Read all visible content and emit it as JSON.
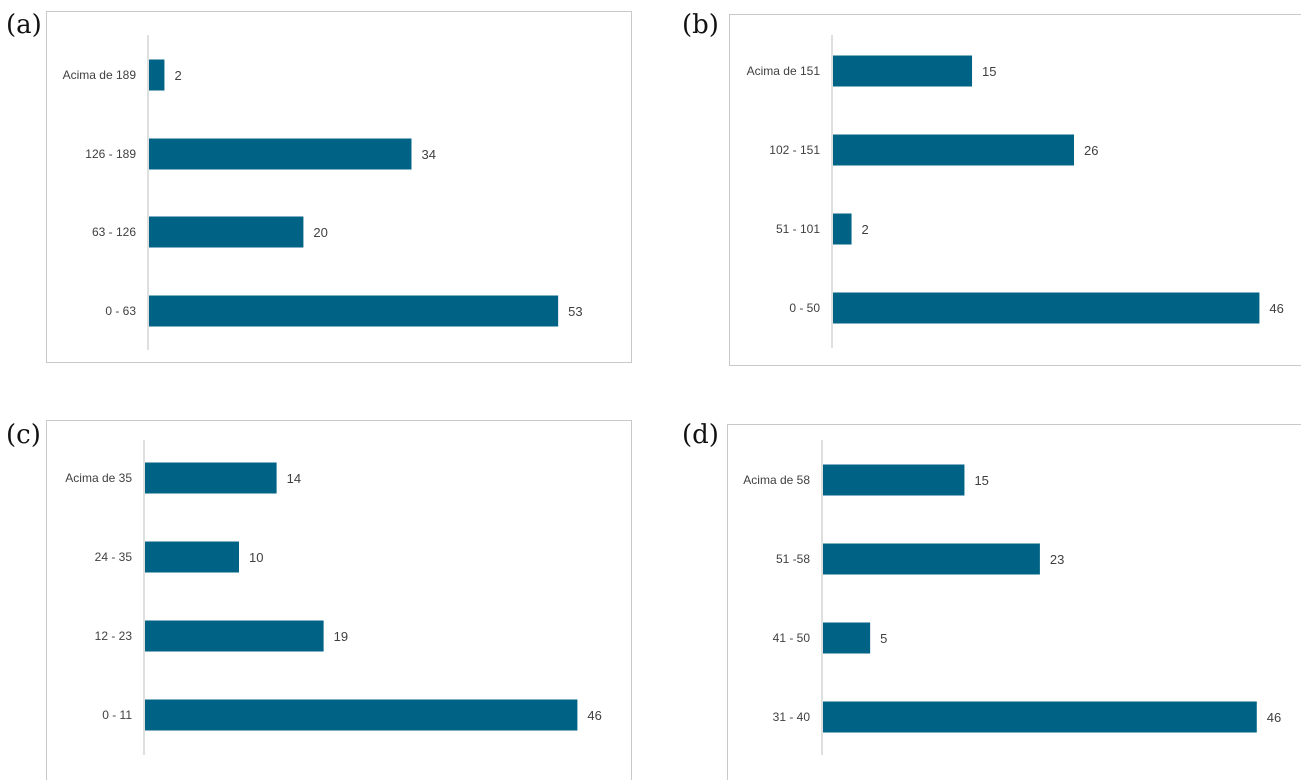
{
  "panels": [
    {
      "tag": "(a)"
    },
    {
      "tag": "(b)"
    },
    {
      "tag": "(c)"
    },
    {
      "tag": "(d)"
    }
  ],
  "colors": {
    "bar": "#006385",
    "axis": "#bfbfbf",
    "frame": "#c9c9c9",
    "label": "#404040"
  },
  "chart_data": [
    {
      "type": "bar",
      "orientation": "horizontal",
      "categories": [
        "Acima de 189",
        "126 - 189",
        "63 - 126",
        "0 - 63"
      ],
      "values": [
        2,
        34,
        20,
        53
      ],
      "data_labels": [
        "2",
        "34",
        "20",
        "53"
      ],
      "title": "",
      "xlabel": "",
      "ylabel": "",
      "grid": false,
      "legend": "none"
    },
    {
      "type": "bar",
      "orientation": "horizontal",
      "categories": [
        "Acima de 151",
        "102 - 151",
        "51 - 101",
        "0 - 50"
      ],
      "values": [
        15,
        26,
        2,
        46
      ],
      "data_labels": [
        "15",
        "26",
        "2",
        "46"
      ],
      "title": "",
      "xlabel": "",
      "ylabel": "",
      "grid": false,
      "legend": "none"
    },
    {
      "type": "bar",
      "orientation": "horizontal",
      "categories": [
        "Acima de 35",
        "24 - 35",
        "12 - 23",
        "0 - 11"
      ],
      "values": [
        14,
        10,
        19,
        46
      ],
      "data_labels": [
        "14",
        "10",
        "19",
        "46"
      ],
      "title": "",
      "xlabel": "",
      "ylabel": "",
      "grid": false,
      "legend": "none"
    },
    {
      "type": "bar",
      "orientation": "horizontal",
      "categories": [
        "Acima de 58",
        "51 -58",
        "41 - 50",
        "31 - 40"
      ],
      "values": [
        15,
        23,
        5,
        46
      ],
      "data_labels": [
        "15",
        "23",
        "5",
        "46"
      ],
      "title": "",
      "xlabel": "",
      "ylabel": "",
      "grid": false,
      "legend": "none"
    }
  ]
}
